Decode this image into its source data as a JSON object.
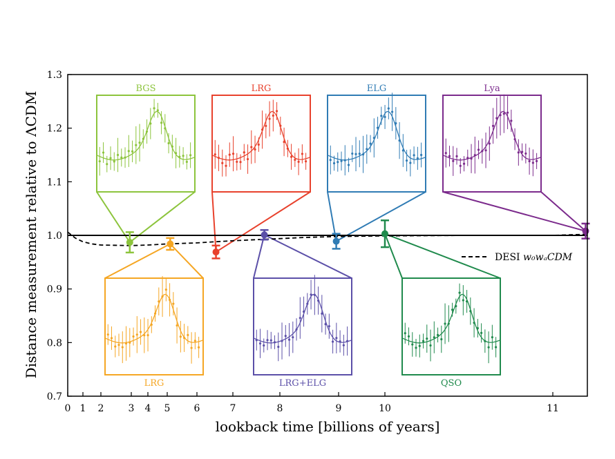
{
  "chart_data": {
    "type": "scatter",
    "xlabel": "lookback time [billions of years]",
    "ylabel": "Distance measurement relative to ΛCDM",
    "ylim": [
      0.7,
      1.3
    ],
    "yticks": [
      "0.7",
      "0.8",
      "0.9",
      "1.0",
      "1.1",
      "1.2",
      "1.3"
    ],
    "xticks": [
      {
        "z": 0.0,
        "label": "0"
      },
      {
        "z": 0.1,
        "label": "1"
      },
      {
        "z": 0.2,
        "label": "2"
      },
      {
        "z": 0.3,
        "label": "3"
      },
      {
        "z": 0.4,
        "label": "4"
      },
      {
        "z": 0.5,
        "label": "5"
      },
      {
        "z": 0.6,
        "label": "6"
      },
      {
        "z": 0.8,
        "label": "7"
      },
      {
        "z": 1.0,
        "label": "8"
      },
      {
        "z": 1.5,
        "label": "9"
      },
      {
        "z": 2.0,
        "label": "10"
      },
      {
        "z": 3.0,
        "label": "11"
      }
    ],
    "x_axis_note": "non-linear lookback-time axis",
    "grid": false,
    "reference_line": 1.0,
    "legend": {
      "placement": "right",
      "entry": "DESI",
      "entry_math": "w₀wₐCDM"
    },
    "dashed_curve": {
      "name": "DESI w0waCDM",
      "x": [
        0.0,
        0.05,
        0.1,
        0.15,
        0.2,
        0.3,
        0.4,
        0.5,
        0.6,
        0.7,
        0.8,
        0.9,
        1.0,
        1.2,
        1.5,
        2.0,
        2.5,
        3.0,
        3.5,
        4.0
      ],
      "y": [
        1.006,
        0.995,
        0.988,
        0.984,
        0.982,
        0.981,
        0.982,
        0.984,
        0.986,
        0.988,
        0.99,
        0.992,
        0.994,
        0.996,
        0.998,
        0.999,
        1.0,
        1.0,
        1.001,
        1.002
      ]
    },
    "series": [
      {
        "name": "BGS",
        "color": "#8cc43c",
        "x": 0.295,
        "y": 0.987,
        "err": 0.019,
        "inset": "top"
      },
      {
        "name": "LRG",
        "color": "#f5a623",
        "x": 0.51,
        "y": 0.984,
        "err": 0.011,
        "inset": "bottom"
      },
      {
        "name": "LRG",
        "color": "#e8412c",
        "x": 0.706,
        "y": 0.969,
        "err": 0.012,
        "inset": "top"
      },
      {
        "name": "LRG+ELG",
        "color": "#5b4fa8",
        "x": 0.934,
        "y": 1.001,
        "err": 0.009,
        "inset": "bottom"
      },
      {
        "name": "ELG",
        "color": "#2f7bb4",
        "x": 1.48,
        "y": 0.989,
        "err": 0.014,
        "inset": "top"
      },
      {
        "name": "QSO",
        "color": "#1f8a4c",
        "x": 2.0,
        "y": 1.003,
        "err": 0.025,
        "inset": "bottom"
      },
      {
        "name": "Lya",
        "color": "#7b2a8c",
        "x": 3.95,
        "y": 1.008,
        "err": 0.014,
        "inset": "top"
      }
    ]
  }
}
